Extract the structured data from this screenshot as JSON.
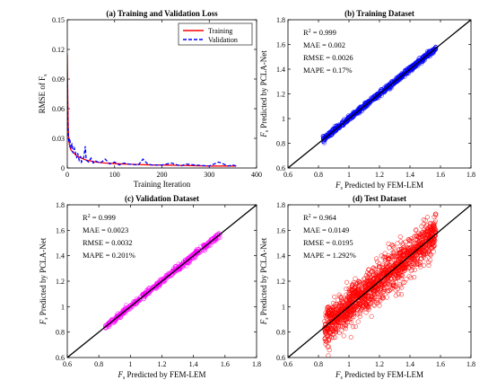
{
  "chart_data": [
    {
      "type": "line",
      "title": "(a) Training and Validation Loss",
      "xlabel": "Training Iteration",
      "ylabel_main": "RMSE of F",
      "ylabel_sub": "s",
      "xlim": [
        0,
        400
      ],
      "ylim": [
        0,
        0.15
      ],
      "xticks": [
        "0",
        "100",
        "200",
        "300",
        "400"
      ],
      "yticks": [
        "0",
        "0.03",
        "0.06",
        "0.09",
        "0.12",
        "0.15"
      ],
      "legend_position": "top-right",
      "series": [
        {
          "name": "Training",
          "color": "#ff0000",
          "style": "solid",
          "x": [
            0,
            1,
            2,
            3,
            5,
            8,
            12,
            16,
            20,
            25,
            30,
            40,
            50,
            60,
            80,
            100,
            120,
            150,
            180,
            200,
            250,
            300,
            350,
            357
          ],
          "y": [
            0.115,
            0.07,
            0.04,
            0.03,
            0.022,
            0.018,
            0.016,
            0.014,
            0.012,
            0.011,
            0.01,
            0.008,
            0.007,
            0.006,
            0.005,
            0.0045,
            0.004,
            0.0035,
            0.003,
            0.003,
            0.0025,
            0.002,
            0.002,
            0.002
          ]
        },
        {
          "name": "Validation",
          "color": "#0000ff",
          "style": "dashed",
          "x": [
            0,
            1,
            2,
            3,
            5,
            8,
            10,
            12,
            15,
            20,
            22,
            25,
            28,
            30,
            35,
            38,
            40,
            45,
            50,
            55,
            60,
            70,
            80,
            90,
            100,
            110,
            120,
            130,
            150,
            160,
            170,
            180,
            200,
            220,
            240,
            250,
            270,
            300,
            320,
            340,
            350,
            357
          ],
          "y": [
            0.09,
            0.045,
            0.035,
            0.028,
            0.03,
            0.02,
            0.025,
            0.015,
            0.02,
            0.01,
            0.015,
            0.008,
            0.012,
            0.006,
            0.011,
            0.022,
            0.008,
            0.006,
            0.01,
            0.005,
            0.007,
            0.005,
            0.009,
            0.004,
            0.006,
            0.003,
            0.005,
            0.004,
            0.003,
            0.009,
            0.004,
            0.003,
            0.003,
            0.005,
            0.002,
            0.004,
            0.003,
            0.002,
            0.006,
            0.002,
            0.003,
            0.002
          ]
        }
      ]
    },
    {
      "type": "scatter",
      "title": "(b) Training Dataset",
      "xlabel_main": "F",
      "xlabel_sub": "s",
      "xlabel_rest": " Predicted by FEM-LEM",
      "ylabel_main": "F",
      "ylabel_sub": "s",
      "ylabel_rest": " Predicted by PCLA-Net",
      "xlim": [
        0.6,
        1.8
      ],
      "ylim": [
        0.6,
        1.8
      ],
      "xticks": [
        "0.6",
        "0.8",
        "1",
        "1.2",
        "1.4",
        "1.6",
        "1.8"
      ],
      "yticks": [
        "0.6",
        "0.8",
        "1",
        "1.2",
        "1.4",
        "1.6",
        "1.8"
      ],
      "color": "#0000ff",
      "x_range": [
        0.83,
        1.57
      ],
      "spread": 0.01,
      "n": 700,
      "stats": [
        "= 0.999",
        "MAE = 0.002",
        "RMSE = 0.0026",
        "MAPE = 0.17%"
      ],
      "r2_prefix": "R",
      "r2_sup": "2"
    },
    {
      "type": "scatter",
      "title": "(c) Validation Dataset",
      "xlabel_main": "F",
      "xlabel_sub": "s",
      "xlabel_rest": " Predicted by FEM-LEM",
      "ylabel_main": "F",
      "ylabel_sub": "s",
      "ylabel_rest": " Predicted by PCLA-Net",
      "xlim": [
        0.6,
        1.8
      ],
      "ylim": [
        0.6,
        1.8
      ],
      "xticks": [
        "0.6",
        "0.8",
        "1",
        "1.2",
        "1.4",
        "1.6",
        "1.8"
      ],
      "yticks": [
        "0.6",
        "0.8",
        "1",
        "1.2",
        "1.4",
        "1.6",
        "1.8"
      ],
      "color": "#ff00ff",
      "x_range": [
        0.84,
        1.57
      ],
      "spread": 0.012,
      "n": 450,
      "stats": [
        "= 0.999",
        "MAE = 0.0023",
        "RMSE = 0.0032",
        "MAPE = 0.201%"
      ],
      "r2_prefix": "R",
      "r2_sup": "2"
    },
    {
      "type": "scatter",
      "title": "(d) Test Dataset",
      "xlabel_main": "F",
      "xlabel_sub": "s",
      "xlabel_rest": " Predicted by FEM-LEM",
      "ylabel_main": "F",
      "ylabel_sub": "s",
      "ylabel_rest": " Predicted by PCLA-Net",
      "xlim": [
        0.6,
        1.8
      ],
      "ylim": [
        0.6,
        1.8
      ],
      "xticks": [
        "0.6",
        "0.8",
        "1",
        "1.2",
        "1.4",
        "1.6",
        "1.8"
      ],
      "yticks": [
        "0.6",
        "0.8",
        "1",
        "1.2",
        "1.4",
        "1.6",
        "1.8"
      ],
      "color": "#ff0000",
      "x_range": [
        0.84,
        1.57
      ],
      "spread": 0.075,
      "n": 1500,
      "stats": [
        "= 0.964",
        "MAE = 0.0149",
        "RMSE = 0.0195",
        "MAPE = 1.292%"
      ],
      "r2_prefix": "R",
      "r2_sup": "2"
    }
  ]
}
